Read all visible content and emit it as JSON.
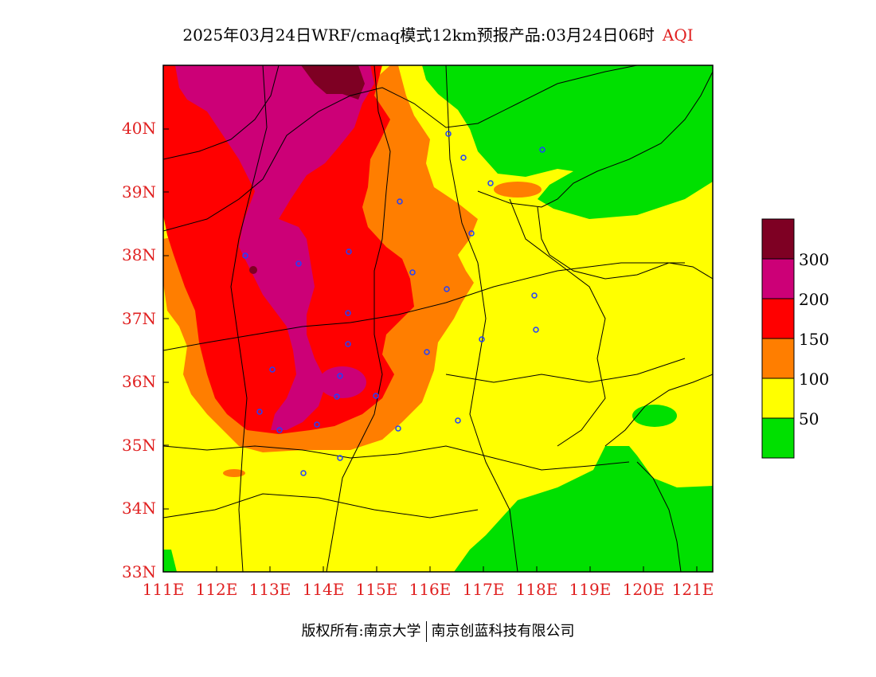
{
  "title": {
    "main": "2025年03月24日WRF/cmaq模式12km预报产品:03月24日06时",
    "tag": "AQI"
  },
  "axes": {
    "lat_labels": [
      "33N",
      "34N",
      "35N",
      "36N",
      "37N",
      "38N",
      "39N",
      "40N"
    ],
    "lon_labels": [
      "111E",
      "112E",
      "113E",
      "114E",
      "115E",
      "116E",
      "117E",
      "118E",
      "119E",
      "120E",
      "121E"
    ]
  },
  "legend": {
    "labels": [
      "50",
      "100",
      "150",
      "200",
      "300"
    ],
    "colors": [
      "#00e000",
      "#ffff00",
      "#ff7e00",
      "#ff0000",
      "#cc0077",
      "#7e0023"
    ]
  },
  "footer": {
    "left": "版权所有:南京大学",
    "right": "南京创蓝科技有限公司"
  }
}
